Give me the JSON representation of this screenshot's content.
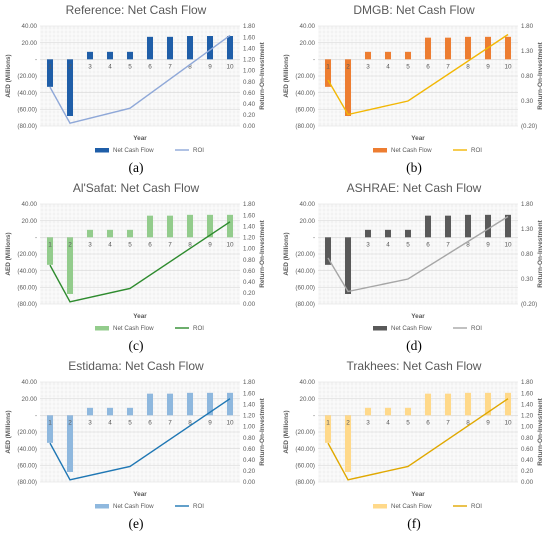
{
  "chart_data": [
    {
      "type": "bar",
      "panel_label": "(a)",
      "title": "Reference: Net Cash Flow",
      "xlabel": "Year",
      "ylabel": "AED (Millions)",
      "y2label": "Return-On-Investment",
      "categories": [
        "1",
        "2",
        "3",
        "4",
        "5",
        "6",
        "7",
        "8",
        "9",
        "10"
      ],
      "ylim": [
        -80,
        40
      ],
      "yticks": [
        -80,
        -60,
        -40,
        -20,
        0,
        20,
        40
      ],
      "ytick_labels": [
        "(80.00)",
        "(60.00)",
        "(40.00)",
        "(20.00)",
        "-",
        "20.00",
        "40.00"
      ],
      "y2lim": [
        0,
        1.8
      ],
      "y2ticks": [
        0,
        0.2,
        0.4,
        0.6,
        0.8,
        1.0,
        1.2,
        1.4,
        1.6,
        1.8
      ],
      "y2tick_labels": [
        "0.00",
        "0.20",
        "0.40",
        "0.60",
        "0.80",
        "1.00",
        "1.20",
        "1.40",
        "1.60",
        "1.80"
      ],
      "bar_color": "#1f5ea8",
      "line_color": "#8fa8d8",
      "series": [
        {
          "name": "Net Cash Flow",
          "values": [
            -33,
            -68,
            9,
            9,
            9,
            27,
            27,
            28,
            28,
            28
          ]
        },
        {
          "name": "ROI",
          "axis": "secondary",
          "values": [
            0.7,
            0.05,
            null,
            null,
            0.32,
            null,
            null,
            null,
            null,
            1.63
          ]
        }
      ],
      "legend": "bottom"
    },
    {
      "type": "bar",
      "panel_label": "(b)",
      "title": "DMGB: Net Cash Flow",
      "xlabel": "Year",
      "ylabel": "AED (Millions)",
      "y2label": "Return-On-Investment",
      "categories": [
        "1",
        "2",
        "3",
        "4",
        "5",
        "6",
        "7",
        "8",
        "9",
        "10"
      ],
      "ylim": [
        -80,
        40
      ],
      "yticks": [
        -80,
        -60,
        -40,
        -20,
        0,
        20,
        40
      ],
      "ytick_labels": [
        "(80.00)",
        "(60.00)",
        "(40.00)",
        "(20.00)",
        "-",
        "20.00",
        "40.00"
      ],
      "y2lim": [
        -0.2,
        1.8
      ],
      "y2ticks": [
        -0.2,
        0.3,
        0.8,
        1.3,
        1.8
      ],
      "y2tick_labels": [
        "(0.20)",
        "0.30",
        "0.80",
        "1.30",
        "1.80"
      ],
      "bar_color": "#ed7d31",
      "line_color": "#f2b705",
      "series": [
        {
          "name": "Net Cash Flow",
          "values": [
            -33,
            -68,
            9,
            9,
            9,
            26,
            26,
            27,
            27,
            27
          ]
        },
        {
          "name": "ROI",
          "axis": "secondary",
          "values": [
            0.72,
            0.03,
            null,
            null,
            0.3,
            null,
            null,
            null,
            null,
            1.63
          ]
        }
      ],
      "legend": "bottom"
    },
    {
      "type": "bar",
      "panel_label": "(c)",
      "title": "Al'Safat: Net Cash Flow",
      "xlabel": "Year",
      "ylabel": "AED (Millions)",
      "y2label": "Return-On-Investment",
      "categories": [
        "1",
        "2",
        "3",
        "4",
        "5",
        "6",
        "7",
        "8",
        "9",
        "10"
      ],
      "ylim": [
        -80,
        40
      ],
      "yticks": [
        -80,
        -60,
        -40,
        -20,
        0,
        20,
        40
      ],
      "ytick_labels": [
        "(80.00)",
        "(60.00)",
        "(40.00)",
        "(20.00)",
        "-",
        "20.00",
        "40.00"
      ],
      "y2lim": [
        0,
        1.8
      ],
      "y2ticks": [
        0,
        0.2,
        0.4,
        0.6,
        0.8,
        1.0,
        1.2,
        1.4,
        1.6,
        1.8
      ],
      "y2tick_labels": [
        "0.00",
        "0.20",
        "0.40",
        "0.60",
        "0.80",
        "1.00",
        "1.20",
        "1.40",
        "1.60",
        "1.80"
      ],
      "bar_color": "#93cc8c",
      "line_color": "#2e8b2e",
      "series": [
        {
          "name": "Net Cash Flow",
          "values": [
            -33,
            -68,
            9,
            9,
            9,
            26,
            26,
            27,
            27,
            27
          ]
        },
        {
          "name": "ROI",
          "axis": "secondary",
          "values": [
            0.7,
            0.04,
            null,
            null,
            0.28,
            null,
            null,
            null,
            null,
            1.48
          ]
        }
      ],
      "legend": "bottom"
    },
    {
      "type": "bar",
      "panel_label": "(d)",
      "title": "ASHRAE: Net Cash Flow",
      "xlabel": "Year",
      "ylabel": "AED (Millions)",
      "y2label": "Return-On-Investment",
      "categories": [
        "1",
        "2",
        "3",
        "4",
        "5",
        "6",
        "7",
        "8",
        "9",
        "10"
      ],
      "ylim": [
        -80,
        40
      ],
      "yticks": [
        -80,
        -60,
        -40,
        -20,
        0,
        20,
        40
      ],
      "ytick_labels": [
        "(80.00)",
        "(60.00)",
        "(40.00)",
        "(20.00)",
        "-",
        "20.00",
        "40.00"
      ],
      "y2lim": [
        -0.2,
        1.8
      ],
      "y2ticks": [
        -0.2,
        0.3,
        0.8,
        1.3,
        1.8
      ],
      "y2tick_labels": [
        "(0.20)",
        "0.30",
        "0.80",
        "1.30",
        "1.80"
      ],
      "bar_color": "#595959",
      "line_color": "#a6a6a6",
      "series": [
        {
          "name": "Net Cash Flow",
          "values": [
            -33,
            -68,
            9,
            9,
            9,
            26,
            26,
            27,
            27,
            27
          ]
        },
        {
          "name": "ROI",
          "axis": "secondary",
          "values": [
            0.72,
            0.05,
            null,
            null,
            0.3,
            null,
            null,
            null,
            null,
            1.55
          ]
        }
      ],
      "legend": "bottom"
    },
    {
      "type": "bar",
      "panel_label": "(e)",
      "title": "Estidama: Net Cash Flow",
      "xlabel": "Year",
      "ylabel": "AED (Millions)",
      "y2label": "Return-On-Investment",
      "categories": [
        "1",
        "2",
        "3",
        "4",
        "5",
        "6",
        "7",
        "8",
        "9",
        "10"
      ],
      "ylim": [
        -80,
        40
      ],
      "yticks": [
        -80,
        -60,
        -40,
        -20,
        0,
        20,
        40
      ],
      "ytick_labels": [
        "(80.00)",
        "(60.00)",
        "(40.00)",
        "(20.00)",
        "-",
        "20.00",
        "40.00"
      ],
      "y2lim": [
        0,
        1.8
      ],
      "y2ticks": [
        0,
        0.2,
        0.4,
        0.6,
        0.8,
        1.0,
        1.2,
        1.4,
        1.6,
        1.8
      ],
      "y2tick_labels": [
        "0.00",
        "0.20",
        "0.40",
        "0.60",
        "0.80",
        "1.00",
        "1.20",
        "1.40",
        "1.60",
        "1.80"
      ],
      "bar_color": "#8fb8de",
      "line_color": "#1f77b4",
      "series": [
        {
          "name": "Net Cash Flow",
          "values": [
            -33,
            -68,
            9,
            9,
            9,
            26,
            26,
            27,
            27,
            27
          ]
        },
        {
          "name": "ROI",
          "axis": "secondary",
          "values": [
            0.7,
            0.04,
            null,
            null,
            0.28,
            null,
            null,
            null,
            null,
            1.5
          ]
        }
      ],
      "legend": "bottom"
    },
    {
      "type": "bar",
      "panel_label": "(f)",
      "title": "Trakhees: Net Cash Flow",
      "xlabel": "Year",
      "ylabel": "AED (Millions)",
      "y2label": "Return-On-Investment",
      "categories": [
        "1",
        "2",
        "3",
        "4",
        "5",
        "6",
        "7",
        "8",
        "9",
        "10"
      ],
      "ylim": [
        -80,
        40
      ],
      "yticks": [
        -80,
        -60,
        -40,
        -20,
        0,
        20,
        40
      ],
      "ytick_labels": [
        "(80.00)",
        "(60.00)",
        "(40.00)",
        "(20.00)",
        "-",
        "20.00",
        "40.00"
      ],
      "y2lim": [
        0,
        1.8
      ],
      "y2ticks": [
        0,
        0.2,
        0.4,
        0.6,
        0.8,
        1.0,
        1.2,
        1.4,
        1.6,
        1.8
      ],
      "y2tick_labels": [
        "0.00",
        "0.20",
        "0.40",
        "0.60",
        "0.80",
        "1.00",
        "1.20",
        "1.40",
        "1.60",
        "1.80"
      ],
      "bar_color": "#ffd98a",
      "line_color": "#e0a800",
      "series": [
        {
          "name": "Net Cash Flow",
          "values": [
            -33,
            -68,
            9,
            9,
            9,
            26,
            26,
            27,
            27,
            27
          ]
        },
        {
          "name": "ROI",
          "axis": "secondary",
          "values": [
            0.7,
            0.04,
            null,
            null,
            0.28,
            null,
            null,
            null,
            null,
            1.5
          ]
        }
      ],
      "legend": "bottom"
    }
  ]
}
